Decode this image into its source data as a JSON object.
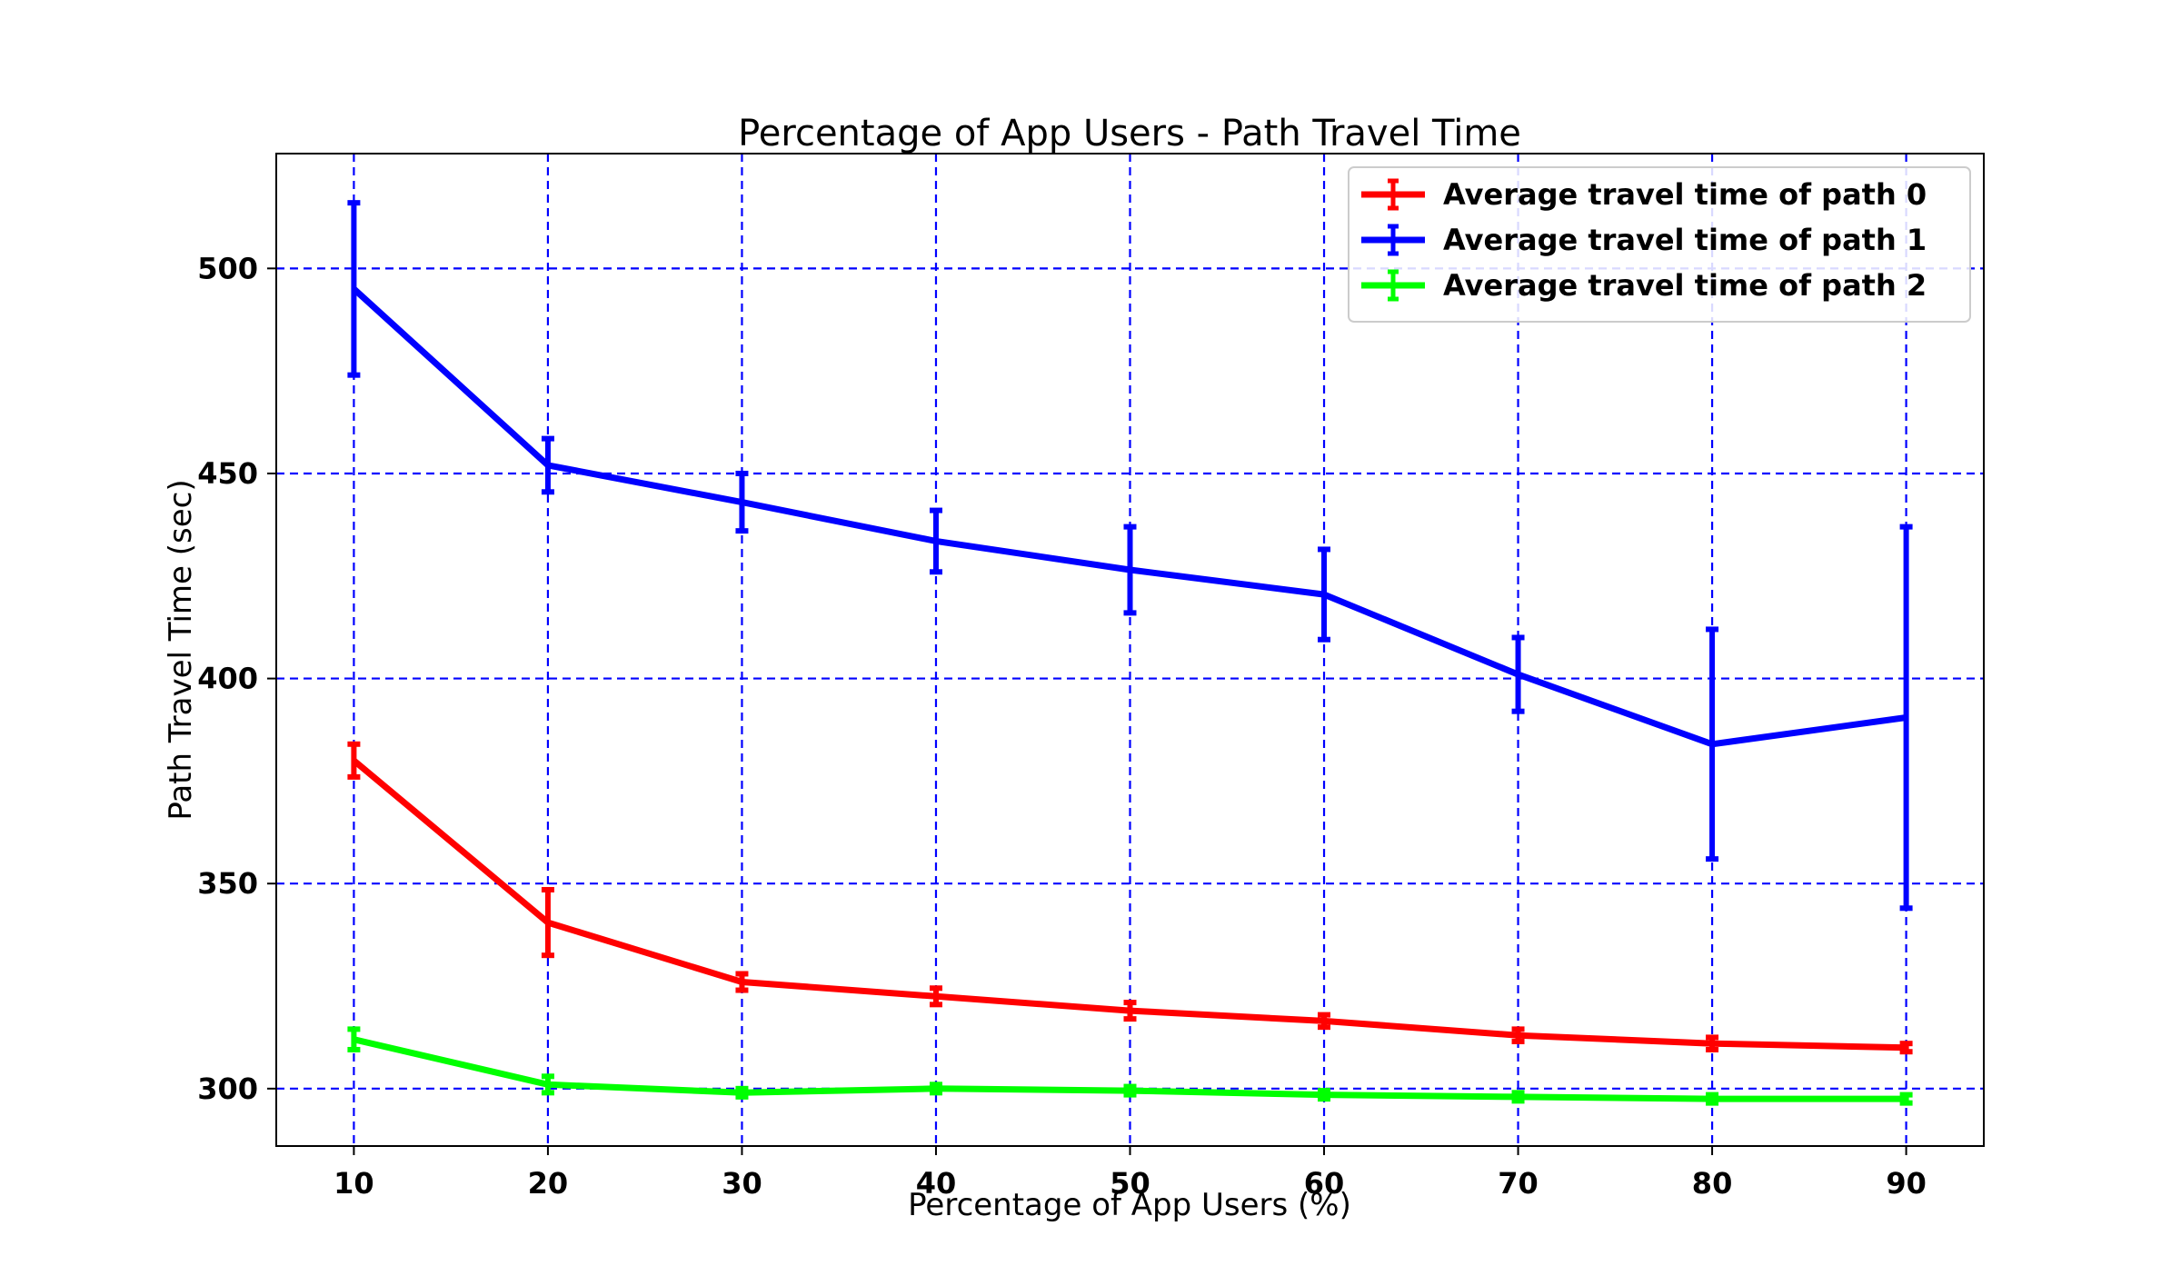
{
  "chart_data": {
    "type": "line",
    "title": "Percentage of App Users - Path Travel Time",
    "xlabel": "Percentage of App Users (%)",
    "ylabel": "Path Travel Time (sec)",
    "x": [
      10,
      20,
      30,
      40,
      50,
      60,
      70,
      80,
      90
    ],
    "xlim": [
      6,
      94
    ],
    "ylim": [
      286,
      528
    ],
    "xticks": [
      10,
      20,
      30,
      40,
      50,
      60,
      70,
      80,
      90
    ],
    "yticks": [
      300,
      350,
      400,
      450,
      500
    ],
    "grid": true,
    "grid_color": "#0000ff",
    "legend_position": "top-right",
    "series": [
      {
        "name": "Average travel time of path 0",
        "color": "#ff0000",
        "values": [
          380,
          340.5,
          326,
          322.5,
          319,
          316.5,
          313,
          311,
          310
        ],
        "errors": [
          4,
          8,
          2,
          2,
          2,
          1.5,
          1.5,
          1.5,
          1
        ]
      },
      {
        "name": "Average travel time of path 1",
        "color": "#0000ff",
        "values": [
          495,
          452,
          443,
          433.5,
          426.5,
          420.5,
          401,
          384,
          390.5
        ],
        "errors": [
          21,
          6.5,
          7,
          7.5,
          10.5,
          11,
          9,
          28,
          46.5
        ]
      },
      {
        "name": "Average travel time of path 2",
        "color": "#00ff00",
        "values": [
          312,
          301,
          299,
          300,
          299.5,
          298.5,
          298,
          297.5,
          297.5
        ],
        "errors": [
          2.5,
          2,
          1,
          1,
          1,
          1,
          1,
          1,
          1
        ]
      }
    ]
  }
}
